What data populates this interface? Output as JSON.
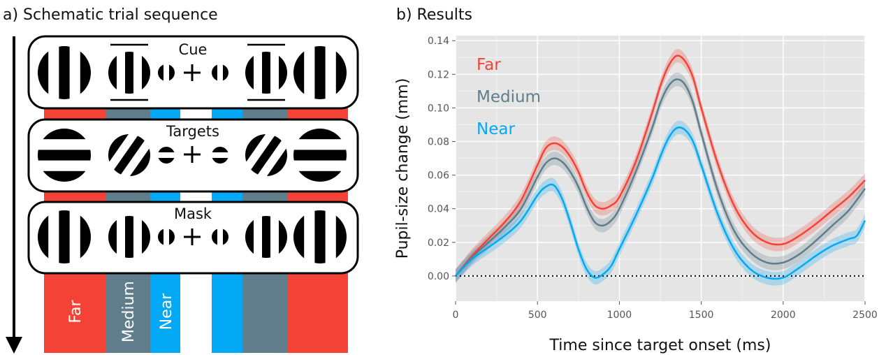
{
  "panel_a": {
    "title": "a) Schematic trial sequence",
    "boxes": [
      {
        "label": "Cue",
        "stim": "cue"
      },
      {
        "label": "Targets",
        "stim": "targets"
      },
      {
        "label": "Mask",
        "stim": "mask"
      }
    ],
    "stripe_labels": {
      "far": "Far",
      "medium": "Medium",
      "near": "Near"
    }
  },
  "colors": {
    "far": "#f44336",
    "medium": "#607d8b",
    "near": "#03a9f4"
  },
  "chart_data": {
    "type": "line",
    "title": "b) Results",
    "xlabel": "Time since target onset (ms)",
    "ylabel": "Pupil-size change (mm)",
    "xlim": [
      0,
      2500
    ],
    "ylim": [
      -0.015,
      0.143
    ],
    "xticks": [
      0,
      500,
      1000,
      1500,
      2000,
      2500
    ],
    "yticks": [
      0.0,
      0.02,
      0.04,
      0.06,
      0.08,
      0.1,
      0.12,
      0.14
    ],
    "ytick_labels": [
      "0.00",
      "0.02",
      "0.04",
      "0.06",
      "0.08",
      "0.10",
      "0.12",
      "0.14"
    ],
    "grid": true,
    "legend_position": "top-left",
    "reference_line": {
      "y": 0,
      "style": "dotted"
    },
    "series": [
      {
        "name": "Far",
        "color": "#f44336",
        "band": 0.004,
        "x": [
          0,
          100,
          200,
          300,
          400,
          500,
          550,
          600,
          650,
          700,
          750,
          800,
          850,
          900,
          950,
          1000,
          1100,
          1200,
          1250,
          1300,
          1350,
          1400,
          1450,
          1500,
          1600,
          1700,
          1800,
          1900,
          2000,
          2100,
          2200,
          2300,
          2400,
          2500
        ],
        "y": [
          0.0,
          0.012,
          0.022,
          0.032,
          0.045,
          0.066,
          0.076,
          0.079,
          0.077,
          0.071,
          0.062,
          0.05,
          0.042,
          0.04,
          0.042,
          0.047,
          0.068,
          0.097,
          0.113,
          0.125,
          0.131,
          0.128,
          0.118,
          0.1,
          0.067,
          0.042,
          0.027,
          0.02,
          0.019,
          0.024,
          0.031,
          0.039,
          0.047,
          0.057
        ]
      },
      {
        "name": "Medium",
        "color": "#607d8b",
        "band": 0.004,
        "x": [
          0,
          100,
          200,
          300,
          400,
          500,
          550,
          600,
          650,
          700,
          750,
          800,
          850,
          900,
          950,
          1000,
          1100,
          1200,
          1250,
          1300,
          1350,
          1400,
          1450,
          1500,
          1600,
          1700,
          1800,
          1900,
          2000,
          2100,
          2200,
          2300,
          2400,
          2500
        ],
        "y": [
          0.0,
          0.011,
          0.02,
          0.029,
          0.04,
          0.059,
          0.067,
          0.07,
          0.068,
          0.062,
          0.053,
          0.041,
          0.032,
          0.03,
          0.033,
          0.04,
          0.062,
          0.088,
          0.103,
          0.113,
          0.117,
          0.114,
          0.103,
          0.085,
          0.051,
          0.027,
          0.014,
          0.008,
          0.008,
          0.013,
          0.021,
          0.03,
          0.039,
          0.052
        ]
      },
      {
        "name": "Near",
        "color": "#03a9f4",
        "band": 0.004,
        "x": [
          0,
          100,
          200,
          300,
          400,
          500,
          550,
          600,
          650,
          700,
          750,
          800,
          850,
          900,
          950,
          1000,
          1100,
          1200,
          1250,
          1300,
          1350,
          1400,
          1450,
          1500,
          1600,
          1700,
          1800,
          1900,
          2000,
          2100,
          2200,
          2300,
          2400,
          2450,
          2500
        ],
        "y": [
          0.0,
          0.01,
          0.017,
          0.024,
          0.033,
          0.048,
          0.053,
          0.054,
          0.046,
          0.032,
          0.016,
          0.004,
          -0.001,
          0.001,
          0.006,
          0.016,
          0.036,
          0.058,
          0.071,
          0.082,
          0.088,
          0.087,
          0.08,
          0.066,
          0.037,
          0.016,
          0.004,
          -0.001,
          -0.001,
          0.005,
          0.012,
          0.018,
          0.022,
          0.024,
          0.033
        ]
      }
    ]
  }
}
